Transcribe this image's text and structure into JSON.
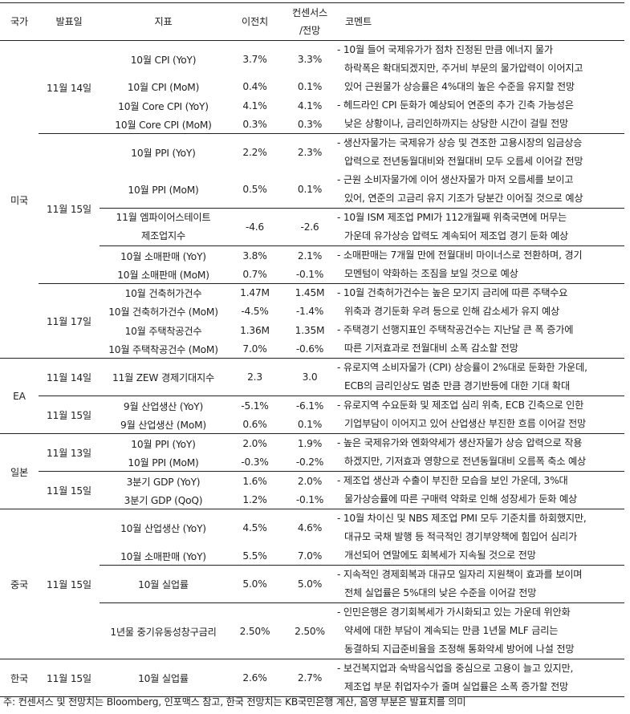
{
  "header": {
    "country": "국가",
    "date": "발표일",
    "indicator": "지표",
    "previous": "이전치",
    "consensus_line1": "컨센서스",
    "consensus_line2": "/전망",
    "comment": "코멘트"
  },
  "countries": [
    {
      "name": "미국",
      "dates": [
        {
          "date": "11월 14일",
          "blocks": [
            {
              "rows": [
                {
                  "indicator": "10월 CPI (YoY)",
                  "previous": "3.7%",
                  "consensus": "3.3%"
                },
                {
                  "indicator": "10월 CPI (MoM)",
                  "previous": "0.4%",
                  "consensus": "0.1%"
                },
                {
                  "indicator": "10월 Core CPI (YoY)",
                  "previous": "4.1%",
                  "consensus": "4.1%"
                },
                {
                  "indicator": "10월 Core CPI (MoM)",
                  "previous": "0.3%",
                  "consensus": "0.3%"
                }
              ],
              "comment": [
                "- 10월 들어 국제유가가 점차 진정된 만큼 에너지 물가",
                "하락폭은 확대되겠지만, 주거비 부문의 물가압력이 이어지고",
                "있어 근원물가 상승률은 4%대의 높은 수준을 유지할 전망",
                "- 헤드라인 CPI 둔화가 예상되어 연준의 추가 긴축 가능성은",
                "낮은 상황이나, 금리인하까지는 상당한 시간이 걸릴 전망"
              ]
            }
          ]
        },
        {
          "date": "11월 15일",
          "blocks": [
            {
              "rows": [
                {
                  "indicator": "10월 PPI (YoY)",
                  "previous": "2.2%",
                  "consensus": "2.3%"
                },
                {
                  "indicator": "10월 PPI (MoM)",
                  "previous": "0.5%",
                  "consensus": "0.1%"
                }
              ],
              "comment": [
                "- 생산자물가는 국제유가 상승 및 견조한 고용시장의 임금상승",
                "압력으로 전년동월대비와 전월대비 모두 오름세 이어갈 전망",
                "- 근원 소비자물가에 이어 생산자물가 마저 오름세를 보이고",
                "있어, 연준의 고금리 유지 기조가 당분간 이어질 것으로 예상"
              ]
            },
            {
              "rows": [
                {
                  "indicator": "11월 엠파이어스테이트 제조업지수",
                  "indicator_lines": [
                    "11월 엠파이어스테이트",
                    "제조업지수"
                  ],
                  "previous": "-4.6",
                  "consensus": "-2.6"
                }
              ],
              "comment": [
                "- 10월 ISM 제조업 PMI가 112개월째 위축국면에 머무는",
                "가운데 유가상승 압력도 계속되어 제조업 경기 둔화 예상"
              ]
            },
            {
              "rows": [
                {
                  "indicator": "10월 소매판매 (YoY)",
                  "previous": "3.8%",
                  "consensus": "2.1%"
                },
                {
                  "indicator": "10월 소매판매 (MoM)",
                  "previous": "0.7%",
                  "consensus": "-0.1%"
                }
              ],
              "comment": [
                "- 소매판매는 7개월 만에 전월대비 마이너스로 전환하며, 경기",
                "모멘텀이 약화하는 조짐을 보일 것으로 예상"
              ]
            }
          ]
        },
        {
          "date": "11월 17일",
          "blocks": [
            {
              "rows": [
                {
                  "indicator": "10월 건축허가건수",
                  "previous": "1.47M",
                  "consensus": "1.45M"
                },
                {
                  "indicator": "10월 건축허가건수 (MoM)",
                  "previous": "-4.5%",
                  "consensus": "-1.4%"
                },
                {
                  "indicator": "10월 주택착공건수",
                  "previous": "1.36M",
                  "consensus": "1.35M"
                },
                {
                  "indicator": "10월 주택착공건수 (MoM)",
                  "previous": "7.0%",
                  "consensus": "-0.6%"
                }
              ],
              "comment": [
                "- 10월 건축허가건수는 높은 모기지 금리에 따른 주택수요",
                "위축과 경기둔화 우려 등으로 인해 감소세가 유지 예상",
                "- 주택경기 선행지표인 주택착공건수는 지난달 큰 폭 증가에",
                "따른 기저효과로 전월대비 소폭 감소할 전망"
              ]
            }
          ]
        }
      ]
    },
    {
      "name": "EA",
      "dates": [
        {
          "date": "11월 14일",
          "blocks": [
            {
              "rows": [
                {
                  "indicator": "11월 ZEW 경제기대지수",
                  "previous": "2.3",
                  "consensus": "3.0"
                }
              ],
              "comment": [
                "- 유로지역 소비자물가 (CPI) 상승률이 2%대로 둔화한 가운데,",
                "ECB의 금리인상도 멈춘 만큼 경기반등에 대한 기대 확대"
              ]
            }
          ]
        },
        {
          "date": "11월 15일",
          "blocks": [
            {
              "rows": [
                {
                  "indicator": "9월 산업생산 (YoY)",
                  "previous": "-5.1%",
                  "consensus": "-6.1%"
                },
                {
                  "indicator": "9월 산업생산 (MoM)",
                  "previous": "0.6%",
                  "consensus": "0.1%"
                }
              ],
              "comment": [
                "- 유로지역 수요둔화 및 제조업 심리 위축, ECB 긴축으로 인한",
                "기업부담이 이어지고 있어 산업생산 부진한 흐름 이어갈 전망"
              ]
            }
          ]
        }
      ]
    },
    {
      "name": "일본",
      "dates": [
        {
          "date": "11월 13일",
          "blocks": [
            {
              "rows": [
                {
                  "indicator": "10월 PPI (YoY)",
                  "previous": "2.0%",
                  "consensus": "1.9%"
                },
                {
                  "indicator": "10월 PPI (MoM)",
                  "previous": "-0.3%",
                  "consensus": "-0.2%"
                }
              ],
              "comment": [
                "- 높은 국제유가와 엔화약세가 생산자물가 상승 압력으로 작용",
                "하겠지만, 기저효과 영향으로 전년동월대비 오름폭 축소 예상"
              ]
            }
          ]
        },
        {
          "date": "11월 15일",
          "blocks": [
            {
              "rows": [
                {
                  "indicator": "3분기 GDP (YoY)",
                  "previous": "1.6%",
                  "consensus": "2.0%"
                },
                {
                  "indicator": "3분기 GDP (QoQ)",
                  "previous": "1.2%",
                  "consensus": "-0.1%"
                }
              ],
              "comment": [
                "- 제조업 생산과 수출이 부진한 모습을 보인 가운데, 3%대",
                "물가상승률에 따른 구매력 약화로 인해 성장세가 둔화 예상"
              ]
            }
          ]
        }
      ]
    },
    {
      "name": "중국",
      "dates": [
        {
          "date": "11월 15일",
          "blocks": [
            {
              "rows": [
                {
                  "indicator": "10월 산업생산 (YoY)",
                  "previous": "4.5%",
                  "consensus": "4.6%"
                },
                {
                  "indicator": "10월 소매판매 (YoY)",
                  "previous": "5.5%",
                  "consensus": "7.0%"
                }
              ],
              "comment": [
                "- 10월 차이신 및 NBS 제조업 PMI 모두 기준치를 하회했지만,",
                "대규모 국채 발행 등 적극적인 경기부양책에 힘입어 심리가",
                "개선되어 연말에도 회복세가 지속될 것으로 전망"
              ]
            },
            {
              "rows": [
                {
                  "indicator": "10월 실업률",
                  "previous": "5.0%",
                  "consensus": "5.0%"
                }
              ],
              "comment": [
                "- 지속적인 경제회복과 대규모 일자리 지원책이 효과를 보이며",
                "전체 실업률은 5%대의 낮은 수준을 이어갈 전망"
              ]
            },
            {
              "rows": [
                {
                  "indicator": "1년물 중기유동성창구금리",
                  "previous": "2.50%",
                  "consensus": "2.50%"
                }
              ],
              "comment": [
                "- 인민은행은 경기회복세가 가시화되고 있는 가운데 위안화",
                "약세에 대한 부담이 계속되는 만큼 1년물 MLF 금리는",
                "동결하되 지급준비율을 조정해 통화약세 방어에 나설 전망"
              ]
            }
          ]
        }
      ]
    },
    {
      "name": "한국",
      "dates": [
        {
          "date": "11월 15일",
          "blocks": [
            {
              "rows": [
                {
                  "indicator": "10월 실업률",
                  "previous": "2.6%",
                  "consensus": "2.7%"
                }
              ],
              "comment": [
                "- 보건복지업과 숙박음식업을 중심으로 고용이 늘고 있지만,",
                "제조업 부문 취업자수가 줄며 실업률은 소폭 증가할 전망"
              ]
            }
          ]
        }
      ]
    }
  ],
  "footnote": "주: 컨센서스 및 전망치는 Bloomberg, 인포맥스 참고, 한국 전망치는 KB국민은행 계산, 음영 부분은 발표치를 의미"
}
